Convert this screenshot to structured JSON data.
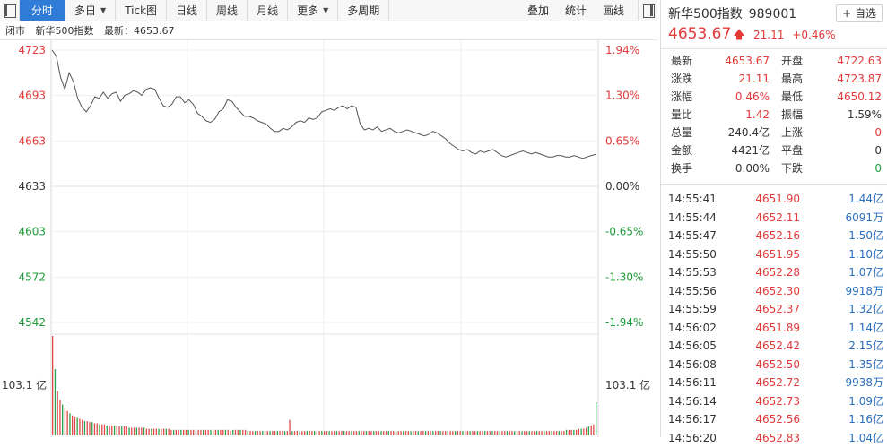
{
  "toolbar": {
    "buttons": [
      {
        "label": "分时",
        "name": "tab-fenshi",
        "active": true,
        "caret": false
      },
      {
        "label": "多日",
        "name": "tab-duori",
        "active": false,
        "caret": true
      },
      {
        "label": "Tick图",
        "name": "tab-tick",
        "active": false,
        "caret": false
      },
      {
        "label": "日线",
        "name": "tab-rixian",
        "active": false,
        "caret": false
      },
      {
        "label": "周线",
        "name": "tab-zhouxian",
        "active": false,
        "caret": false
      },
      {
        "label": "月线",
        "name": "tab-yuexian",
        "active": false,
        "caret": false
      },
      {
        "label": "更多",
        "name": "tab-gengduo",
        "active": false,
        "caret": true
      },
      {
        "label": "多周期",
        "name": "tab-duozhouqi",
        "active": false,
        "caret": false
      }
    ],
    "right_buttons": [
      {
        "label": "叠加",
        "name": "overlay-button"
      },
      {
        "label": "统计",
        "name": "stats-button"
      },
      {
        "label": "画线",
        "name": "draw-line-button"
      }
    ]
  },
  "infoline": {
    "status": "闭市",
    "name": "新华500指数",
    "latest": "最新：4653.67"
  },
  "axes": {
    "price_labels": [
      {
        "text": "4723",
        "color": "#e33a3a"
      },
      {
        "text": "4693",
        "color": "#e33a3a"
      },
      {
        "text": "4663",
        "color": "#e33a3a"
      },
      {
        "text": "4633",
        "color": "#333333"
      },
      {
        "text": "4603",
        "color": "#1e9b3a"
      },
      {
        "text": "4572",
        "color": "#1e9b3a"
      },
      {
        "text": "4542",
        "color": "#1e9b3a"
      }
    ],
    "pct_labels": [
      {
        "text": "1.94%",
        "color": "#e33a3a"
      },
      {
        "text": "1.30%",
        "color": "#e33a3a"
      },
      {
        "text": "0.65%",
        "color": "#e33a3a"
      },
      {
        "text": "0.00%",
        "color": "#333333"
      },
      {
        "text": "-0.65%",
        "color": "#1e9b3a"
      },
      {
        "text": "-1.30%",
        "color": "#1e9b3a"
      },
      {
        "text": "-1.94%",
        "color": "#1e9b3a"
      }
    ],
    "volume_label_left": "103.1 亿",
    "volume_label_right": "103.1 亿"
  },
  "chart_data": {
    "type": "line",
    "prev_close": 4633,
    "ylim": [
      4542,
      4723
    ],
    "price_series": [
      4723,
      4719,
      4705,
      4697,
      4708,
      4702,
      4691,
      4685,
      4682,
      4686,
      4692,
      4691,
      4695,
      4691,
      4694,
      4695,
      4689,
      4693,
      4694,
      4696,
      4695,
      4693,
      4697,
      4698,
      4697,
      4691,
      4686,
      4685,
      4687,
      4692,
      4692,
      4688,
      4690,
      4687,
      4681,
      4679,
      4676,
      4675,
      4677,
      4682,
      4684,
      4690,
      4689,
      4685,
      4682,
      4679,
      4679,
      4678,
      4676,
      4675,
      4674,
      4671,
      4669,
      4669,
      4671,
      4670,
      4672,
      4675,
      4676,
      4675,
      4678,
      4677,
      4678,
      4682,
      4683,
      4684,
      4683,
      4685,
      4686,
      4684,
      4686,
      4685,
      4674,
      4670,
      4671,
      4670,
      4672,
      4669,
      4670,
      4671,
      4669,
      4668,
      4669,
      4670,
      4669,
      4668,
      4667,
      4666,
      4667,
      4669,
      4668,
      4666,
      4664,
      4661,
      4659,
      4657,
      4656,
      4657,
      4655,
      4654,
      4656,
      4655,
      4656,
      4657,
      4655,
      4653,
      4652,
      4653,
      4654,
      4655,
      4656,
      4655,
      4654,
      4655,
      4654,
      4653,
      4652,
      4652,
      4653,
      4653,
      4652,
      4652,
      4653,
      4652,
      4651,
      4652,
      4653,
      4653.67
    ],
    "volume_series": [
      90,
      60,
      40,
      32,
      28,
      25,
      22,
      20,
      18,
      17,
      16,
      15,
      14,
      13,
      13,
      12,
      12,
      11,
      11,
      10,
      10,
      10,
      9,
      9,
      9,
      9,
      8,
      8,
      8,
      8,
      8,
      7,
      7,
      7,
      7,
      7,
      7,
      7,
      6,
      6,
      6,
      6,
      6,
      6,
      6,
      6,
      6,
      6,
      5,
      5,
      5,
      5,
      5,
      5,
      5,
      5,
      5,
      5,
      5,
      5,
      5,
      5,
      5,
      5,
      5,
      5,
      5,
      5,
      5,
      5,
      5,
      5,
      4,
      5,
      5,
      5,
      5,
      5,
      5,
      4,
      4,
      4,
      4,
      4,
      4,
      4,
      4,
      4,
      4,
      4,
      4,
      4,
      4,
      4,
      4,
      4,
      14,
      4,
      4,
      4,
      4,
      4,
      4,
      4,
      4,
      4,
      4,
      4,
      4,
      4,
      4,
      4,
      4,
      4,
      4,
      4,
      4,
      4,
      4,
      4,
      4,
      4,
      4,
      4,
      4,
      4,
      4,
      4,
      4,
      4,
      4,
      4,
      4,
      4,
      4,
      4,
      4,
      4,
      4,
      4,
      4,
      4,
      4,
      4,
      4,
      4,
      4,
      4,
      4,
      4,
      4,
      4,
      4,
      4,
      4,
      4,
      4,
      4,
      4,
      4,
      4,
      4,
      4,
      4,
      4,
      4,
      4,
      4,
      4,
      4,
      4,
      4,
      4,
      4,
      4,
      4,
      4,
      4,
      4,
      4,
      4,
      4,
      4,
      4,
      4,
      4,
      4,
      4,
      4,
      4,
      4,
      4,
      4,
      4,
      4,
      4,
      4,
      4,
      4,
      4,
      4,
      4,
      4,
      4,
      4,
      4,
      4,
      4,
      5,
      5,
      5,
      5,
      5,
      6,
      6,
      6,
      7,
      8,
      9,
      10,
      30
    ],
    "volume_max": 103.1
  },
  "quote": {
    "name": "新华500指数",
    "code": "989001",
    "add_watch": "+ 自选",
    "price": "4653.67",
    "change": "21.11",
    "change_pct": "+0.46%",
    "stats": [
      {
        "l1": "最新",
        "v1": "4653.67",
        "c1": "red",
        "l2": "开盘",
        "v2": "4722.63",
        "c2": "red"
      },
      {
        "l1": "涨跌",
        "v1": "21.11",
        "c1": "red",
        "l2": "最高",
        "v2": "4723.87",
        "c2": "red"
      },
      {
        "l1": "涨幅",
        "v1": "0.46%",
        "c1": "red",
        "l2": "最低",
        "v2": "4650.12",
        "c2": "red"
      },
      {
        "l1": "量比",
        "v1": "1.42",
        "c1": "red",
        "l2": "振幅",
        "v2": "1.59%",
        "c2": "black"
      },
      {
        "l1": "总量",
        "v1": "240.4亿",
        "c1": "black",
        "l2": "上涨",
        "v2": "0",
        "c2": "red"
      },
      {
        "l1": "金额",
        "v1": "4421亿",
        "c1": "black",
        "l2": "平盘",
        "v2": "0",
        "c2": "black"
      },
      {
        "l1": "换手",
        "v1": "0.00%",
        "c1": "black",
        "l2": "下跌",
        "v2": "0",
        "c2": "green"
      }
    ],
    "ticks": [
      {
        "time": "14:55:41",
        "price": "4651.90",
        "vol": "1.44亿"
      },
      {
        "time": "14:55:44",
        "price": "4652.11",
        "vol": "6091万"
      },
      {
        "time": "14:55:47",
        "price": "4652.16",
        "vol": "1.50亿"
      },
      {
        "time": "14:55:50",
        "price": "4651.95",
        "vol": "1.10亿"
      },
      {
        "time": "14:55:53",
        "price": "4652.28",
        "vol": "1.07亿"
      },
      {
        "time": "14:55:56",
        "price": "4652.30",
        "vol": "9918万"
      },
      {
        "time": "14:55:59",
        "price": "4652.37",
        "vol": "1.32亿"
      },
      {
        "time": "14:56:02",
        "price": "4651.89",
        "vol": "1.14亿"
      },
      {
        "time": "14:56:05",
        "price": "4652.42",
        "vol": "2.15亿"
      },
      {
        "time": "14:56:08",
        "price": "4652.50",
        "vol": "1.35亿"
      },
      {
        "time": "14:56:11",
        "price": "4652.72",
        "vol": "9938万"
      },
      {
        "time": "14:56:14",
        "price": "4652.73",
        "vol": "1.09亿"
      },
      {
        "time": "14:56:17",
        "price": "4652.56",
        "vol": "1.16亿"
      },
      {
        "time": "14:56:20",
        "price": "4652.83",
        "vol": "1.04亿"
      }
    ]
  }
}
